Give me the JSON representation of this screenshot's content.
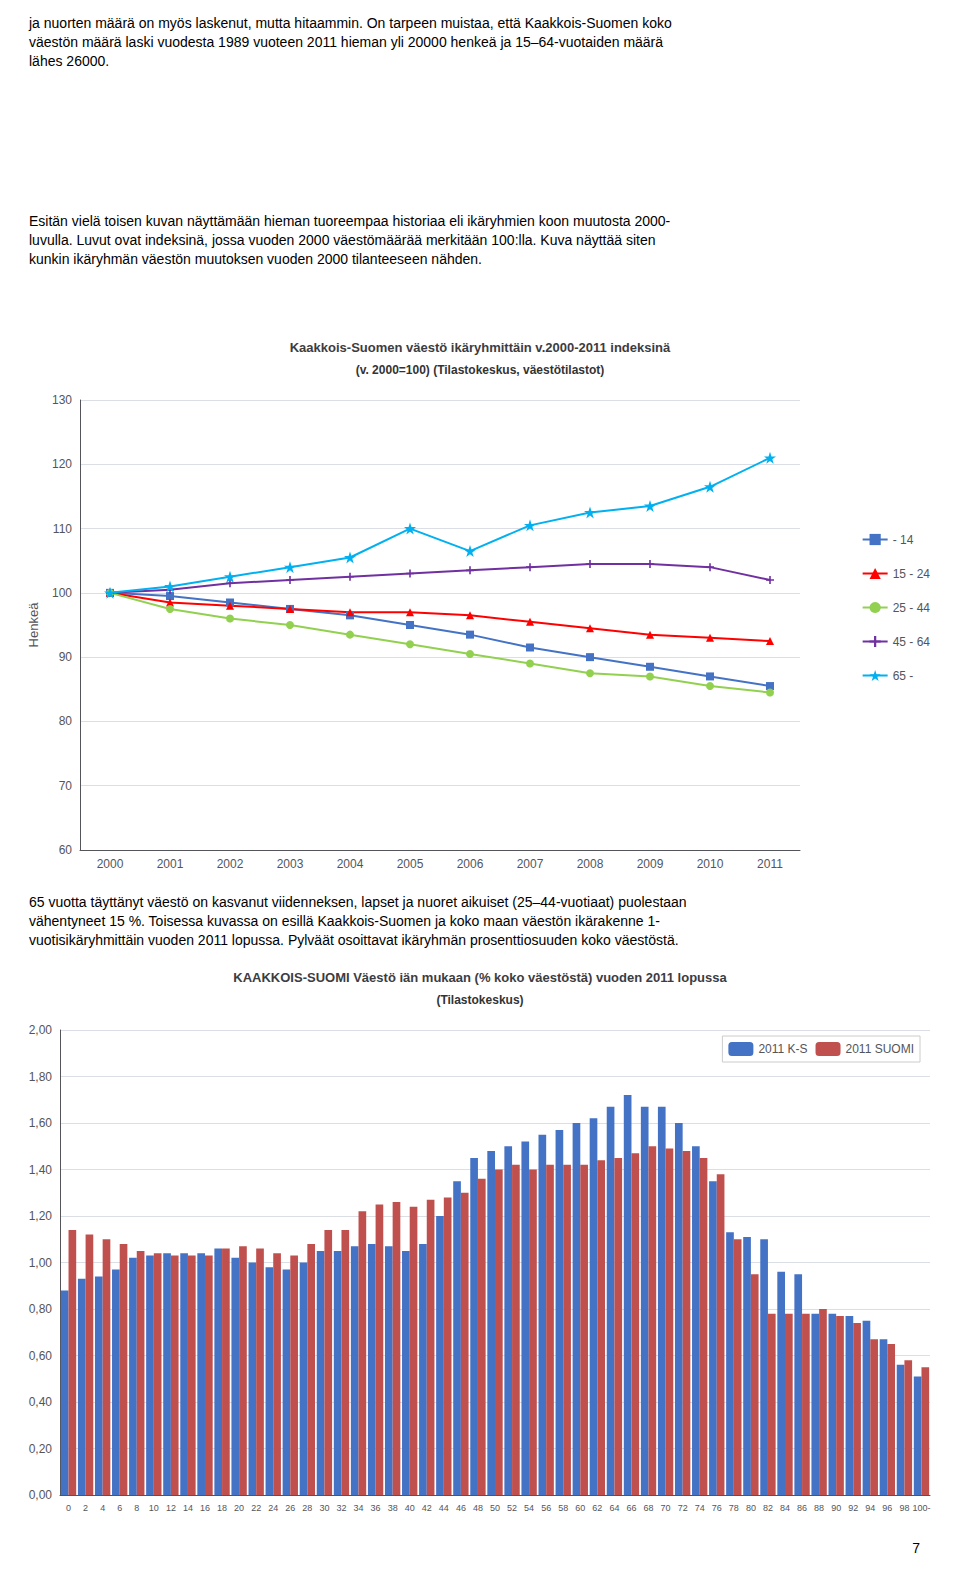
{
  "text_blocks": [
    "ja nuorten määrä on myös laskenut, mutta hitaammin. On tarpeen muistaa, että Kaakkois-Suomen koko\nväestön määrä laski vuodesta 1989 vuoteen 2011 hieman yli 20000 henkeä ja 15–64-vuotaiden määrä\nlähes 26000.",
    "Esitän vielä toisen kuvan näyttämään hieman tuoreempaa historiaa eli ikäryhmien koon muutosta 2000-\nluvulla. Luvut ovat indeksinä, jossa vuoden 2000 väestömäärää merkitään 100:lla. Kuva näyttää siten\nkunkin ikäryhmän väestön muutoksen vuoden 2000 tilanteeseen nähden.",
    "65 vuotta täyttänyt väestö on kasvanut viidenneksen, lapset ja nuoret aikuiset (25–44-vuotiaat) puolestaan\nvähentyneet 15 %. Toisessa kuvassa on esillä Kaakkois-Suomen ja koko maan väestön ikärakenne 1-\nvuotisikäryhmittäin vuoden 2011 lopussa. Pylväät osoittavat ikäryhmän prosenttiosuuden koko väestöstä."
  ],
  "page_number": "7",
  "chart_data": [
    {
      "type": "line",
      "title": "Kaakkois-Suomen väestö ikäryhmittäin v.2000-2011 indeksinä",
      "subtitle": "(v. 2000=100) (Tilastokeskus, väestötilastot)",
      "ylabel": "Henkeä",
      "categories": [
        "2000",
        "2001",
        "2002",
        "2003",
        "2004",
        "2005",
        "2006",
        "2007",
        "2008",
        "2009",
        "2010",
        "2011"
      ],
      "ylim": [
        60,
        130
      ],
      "yticks": [
        60,
        70,
        80,
        90,
        100,
        110,
        120,
        130
      ],
      "grid": true,
      "legend": "right",
      "series": [
        {
          "name": "- 14",
          "color": "#4472C4",
          "marker": "square",
          "values": [
            100,
            99.5,
            98.5,
            97.5,
            96.5,
            95.0,
            93.5,
            91.5,
            90.0,
            88.5,
            87.0,
            85.5
          ]
        },
        {
          "name": "15 - 24",
          "color": "#FF0000",
          "marker": "triangle",
          "values": [
            100,
            98.5,
            98.0,
            97.5,
            97.0,
            97.0,
            96.5,
            95.5,
            94.5,
            93.5,
            93.0,
            92.5
          ]
        },
        {
          "name": "25 - 44",
          "color": "#92D050",
          "marker": "circle",
          "values": [
            100,
            97.5,
            96.0,
            95.0,
            93.5,
            92.0,
            90.5,
            89.0,
            87.5,
            87.0,
            85.5,
            84.5
          ]
        },
        {
          "name": "45 - 64",
          "color": "#7030A0",
          "marker": "plus",
          "values": [
            100,
            100.5,
            101.5,
            102.0,
            102.5,
            103.0,
            103.5,
            104.0,
            104.5,
            104.5,
            104.0,
            102.0
          ]
        },
        {
          "name": "65 -",
          "color": "#00B0F0",
          "marker": "star",
          "values": [
            100,
            101.0,
            102.5,
            104.0,
            105.5,
            110.0,
            106.5,
            110.5,
            112.5,
            113.5,
            116.5,
            121.0
          ]
        }
      ]
    },
    {
      "type": "bar",
      "title": "KAAKKOIS-SUOMI Väestö iän mukaan (% koko väestöstä) vuoden 2011 lopussa",
      "subtitle": "(Tilastokeskus)",
      "categories": [
        "0",
        "2",
        "4",
        "6",
        "8",
        "10",
        "12",
        "14",
        "16",
        "18",
        "20",
        "22",
        "24",
        "26",
        "28",
        "30",
        "32",
        "34",
        "36",
        "38",
        "40",
        "42",
        "44",
        "46",
        "48",
        "50",
        "52",
        "54",
        "56",
        "58",
        "60",
        "62",
        "64",
        "66",
        "68",
        "70",
        "72",
        "74",
        "76",
        "78",
        "80",
        "82",
        "84",
        "86",
        "88",
        "90",
        "92",
        "94",
        "96",
        "98",
        "100-"
      ],
      "ylim": [
        0.0,
        2.0
      ],
      "yticks": [
        {
          "value": 0.0,
          "label": "0,00"
        },
        {
          "value": 0.2,
          "label": "0,20"
        },
        {
          "value": 0.4,
          "label": "0,40"
        },
        {
          "value": 0.6,
          "label": "0,60"
        },
        {
          "value": 0.8,
          "label": "0,80"
        },
        {
          "value": 1.0,
          "label": "1,00"
        },
        {
          "value": 1.2,
          "label": "1,20"
        },
        {
          "value": 1.4,
          "label": "1,40"
        },
        {
          "value": 1.6,
          "label": "1,60"
        },
        {
          "value": 1.8,
          "label": "1,80"
        },
        {
          "value": 2.0,
          "label": "2,00"
        }
      ],
      "grid": true,
      "legend": "upper right",
      "series": [
        {
          "name": "2011 K-S",
          "color": "#4472C4",
          "values": [
            0.88,
            0.93,
            0.94,
            0.97,
            1.02,
            1.03,
            1.04,
            1.04,
            1.04,
            1.06,
            1.02,
            1.0,
            0.98,
            0.97,
            1.0,
            1.05,
            1.05,
            1.07,
            1.08,
            1.07,
            1.05,
            1.08,
            1.2,
            1.35,
            1.45,
            1.48,
            1.5,
            1.52,
            1.55,
            1.57,
            1.6,
            1.62,
            1.67,
            1.72,
            1.67,
            1.67,
            1.6,
            1.5,
            1.35,
            1.13,
            1.11,
            1.1,
            0.96,
            0.95,
            0.78,
            0.78,
            0.77,
            0.75,
            0.67,
            0.56,
            0.51
          ]
        },
        {
          "name": "2011 SUOMI",
          "color": "#C0504D",
          "values": [
            1.14,
            1.12,
            1.1,
            1.08,
            1.05,
            1.04,
            1.03,
            1.03,
            1.03,
            1.06,
            1.07,
            1.06,
            1.04,
            1.03,
            1.08,
            1.14,
            1.14,
            1.22,
            1.25,
            1.26,
            1.24,
            1.27,
            1.28,
            1.3,
            1.36,
            1.4,
            1.42,
            1.4,
            1.42,
            1.42,
            1.42,
            1.44,
            1.45,
            1.47,
            1.5,
            1.49,
            1.48,
            1.45,
            1.38,
            1.1,
            0.95,
            0.78,
            0.78,
            0.78,
            0.8,
            0.77,
            0.74,
            0.67,
            0.65,
            0.58,
            0.55
          ]
        }
      ]
    }
  ]
}
